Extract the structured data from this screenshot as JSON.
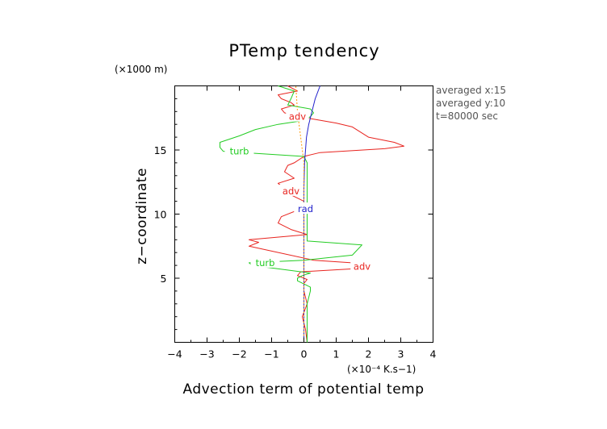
{
  "chart_data": {
    "type": "line",
    "title": "PTemp tendency",
    "xlabel": "Advection term of potential temp",
    "ylabel": "z−coordinate",
    "x_unit": "(×10⁻⁴ K.s−1)",
    "y_unit": "(×1000 m)",
    "xlim": [
      -4,
      4
    ],
    "ylim": [
      0,
      20
    ],
    "x_ticks": [
      -4,
      -3,
      -2,
      -1,
      0,
      1,
      2,
      3,
      4
    ],
    "y_ticks": [
      5,
      10,
      15
    ],
    "x_tick_labels": [
      "−4",
      "−3",
      "−2",
      "−1",
      "0",
      "1",
      "2",
      "3",
      "4"
    ],
    "y_tick_labels": [
      "5",
      "10",
      "15"
    ],
    "grid": false,
    "annotations": [
      "averaged  x:15",
      "averaged  y:10",
      "t=80000 sec"
    ],
    "series": [
      {
        "name": "adv",
        "color": "#e8241f",
        "labels": [
          {
            "x": -0.2,
            "y": 17.6
          },
          {
            "x": -0.4,
            "y": 11.8
          },
          {
            "x": 1.8,
            "y": 5.9
          }
        ],
        "points": [
          [
            0.1,
            0.0
          ],
          [
            0.05,
            1.0
          ],
          [
            -0.05,
            2.0
          ],
          [
            0.1,
            3.0
          ],
          [
            0.0,
            4.0
          ],
          [
            0.0,
            4.6
          ],
          [
            0.1,
            4.9
          ],
          [
            -0.2,
            5.2
          ],
          [
            -0.1,
            5.5
          ],
          [
            2.0,
            5.8
          ],
          [
            2.1,
            6.1
          ],
          [
            0.3,
            6.4
          ],
          [
            -1.7,
            7.5
          ],
          [
            -1.4,
            7.8
          ],
          [
            -1.7,
            8.0
          ],
          [
            0.1,
            8.4
          ],
          [
            -0.4,
            8.8
          ],
          [
            -0.8,
            9.3
          ],
          [
            -0.7,
            9.8
          ],
          [
            0.0,
            10.5
          ],
          [
            0.0,
            11.0
          ],
          [
            -0.4,
            11.5
          ],
          [
            -0.6,
            12.0
          ],
          [
            -0.8,
            12.4
          ],
          [
            -0.3,
            12.8
          ],
          [
            -0.6,
            13.3
          ],
          [
            -0.5,
            13.8
          ],
          [
            -0.3,
            14.0
          ],
          [
            0.0,
            14.5
          ],
          [
            0.5,
            14.8
          ],
          [
            2.5,
            15.1
          ],
          [
            3.1,
            15.3
          ],
          [
            2.8,
            15.6
          ],
          [
            2.0,
            16.0
          ],
          [
            1.5,
            16.8
          ],
          [
            1.0,
            17.1
          ],
          [
            0.3,
            17.4
          ],
          [
            -0.2,
            17.6
          ],
          [
            -0.6,
            17.9
          ],
          [
            -0.7,
            18.2
          ],
          [
            -0.3,
            18.5
          ],
          [
            -0.4,
            18.7
          ],
          [
            -0.7,
            19.0
          ],
          [
            -0.8,
            19.3
          ],
          [
            -0.2,
            19.6
          ],
          [
            -0.5,
            20.0
          ]
        ]
      },
      {
        "name": "turb",
        "color": "#22cc22",
        "labels": [
          {
            "x": -2.0,
            "y": 14.9
          },
          {
            "x": -1.2,
            "y": 6.2
          }
        ],
        "points": [
          [
            0.1,
            0.0
          ],
          [
            0.1,
            1.0
          ],
          [
            0.1,
            2.0
          ],
          [
            0.1,
            3.0
          ],
          [
            0.2,
            4.0
          ],
          [
            0.2,
            4.3
          ],
          [
            -0.2,
            4.8
          ],
          [
            -0.2,
            5.0
          ],
          [
            -0.05,
            5.2
          ],
          [
            0.2,
            5.4
          ],
          [
            -1.6,
            6.0
          ],
          [
            -1.7,
            6.2
          ],
          [
            0.0,
            6.4
          ],
          [
            1.5,
            6.8
          ],
          [
            1.8,
            7.6
          ],
          [
            0.1,
            7.9
          ],
          [
            0.1,
            9.0
          ],
          [
            0.1,
            10.0
          ],
          [
            0.1,
            11.0
          ],
          [
            0.1,
            12.0
          ],
          [
            0.1,
            13.0
          ],
          [
            0.1,
            14.0
          ],
          [
            0.0,
            14.5
          ],
          [
            -2.5,
            14.9
          ],
          [
            -2.6,
            15.2
          ],
          [
            -2.6,
            15.6
          ],
          [
            -2.0,
            16.1
          ],
          [
            -1.5,
            16.6
          ],
          [
            -0.8,
            17.0
          ],
          [
            0.0,
            17.3
          ],
          [
            0.2,
            17.6
          ],
          [
            0.3,
            17.9
          ],
          [
            0.2,
            18.2
          ],
          [
            -0.5,
            18.5
          ],
          [
            -0.4,
            19.0
          ],
          [
            -0.3,
            19.6
          ],
          [
            -0.8,
            20.0
          ]
        ]
      },
      {
        "name": "rad",
        "color": "#2222cc",
        "labels": [
          {
            "x": 0.05,
            "y": 10.4
          }
        ],
        "points": [
          [
            0.0,
            0.0
          ],
          [
            0.0,
            3.0
          ],
          [
            0.0,
            6.0
          ],
          [
            0.0,
            9.0
          ],
          [
            0.0,
            12.0
          ],
          [
            0.02,
            14.0
          ],
          [
            0.05,
            15.0
          ],
          [
            0.08,
            16.0
          ],
          [
            0.15,
            17.0
          ],
          [
            0.25,
            18.0
          ],
          [
            0.35,
            19.0
          ],
          [
            0.5,
            20.0
          ]
        ]
      },
      {
        "name": "",
        "color": "#ff9900",
        "dash": true,
        "labels": [],
        "points": [
          [
            0.0,
            0.0
          ],
          [
            0.0,
            14.0
          ],
          [
            -0.1,
            16.0
          ],
          [
            -0.2,
            18.0
          ],
          [
            -0.25,
            20.0
          ]
        ]
      }
    ]
  }
}
